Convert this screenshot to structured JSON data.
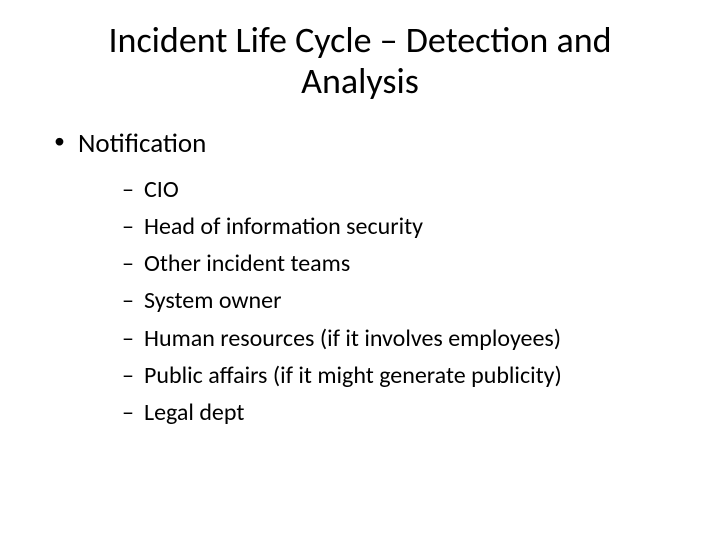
{
  "slide": {
    "title": "Incident Life Cycle – Detection and Analysis",
    "title_fontsize": 36,
    "title_color": "#000000",
    "background_color": "#ffffff",
    "level1": {
      "bullet_char": "•",
      "fontsize": 27,
      "color": "#000000",
      "items": [
        {
          "label": "Notification",
          "sub": {
            "bullet_char": "–",
            "fontsize": 24,
            "color": "#000000",
            "items": [
              "CIO",
              "Head of information security",
              "Other incident teams",
              "System owner",
              "Human resources (if it involves employees)",
              "Public affairs (if it might generate publicity)",
              "Legal dept"
            ]
          }
        }
      ]
    }
  }
}
